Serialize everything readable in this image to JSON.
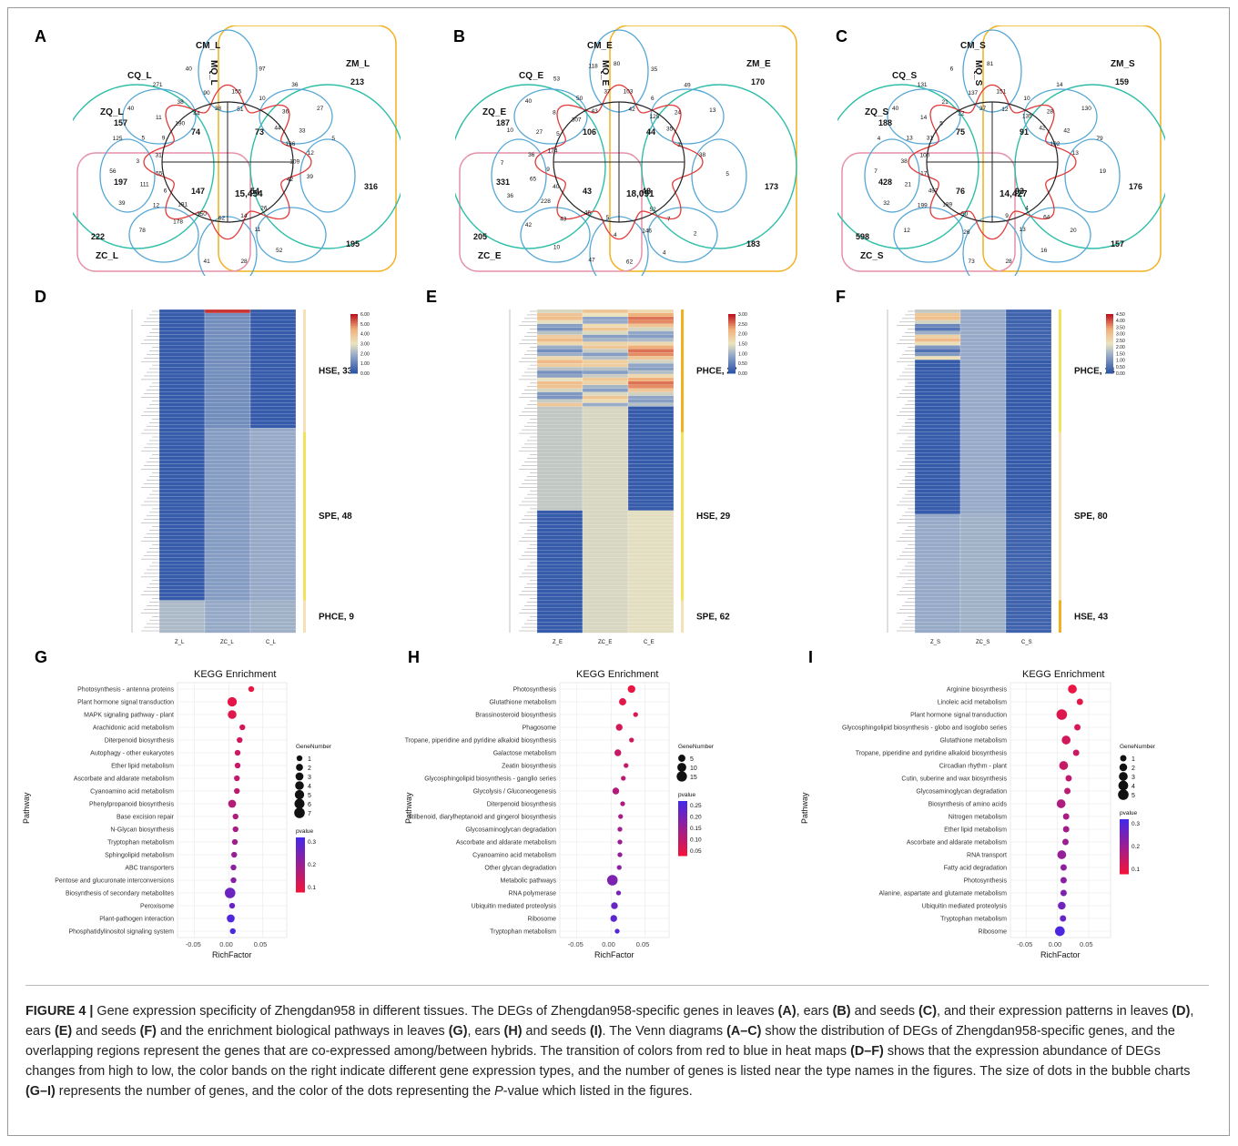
{
  "figure": {
    "panel_letters": [
      "A",
      "B",
      "C",
      "D",
      "E",
      "F",
      "G",
      "H",
      "I"
    ],
    "caption": {
      "label": "FIGURE 4 |",
      "parts": [
        " Gene expression specificity of Zhengdan958 in different tissues. The DEGs of Zhengdan958-specific genes in leaves ",
        "(A)",
        ", ears ",
        "(B)",
        " and seeds ",
        "(C)",
        ", and their expression patterns in leaves ",
        "(D)",
        ", ears ",
        "(E)",
        " and seeds ",
        "(F)",
        " and the enrichment biological pathways in leaves ",
        "(G)",
        ", ears ",
        "(H)",
        " and seeds ",
        "(I)",
        ". The Venn diagrams ",
        "(A–C)",
        " show the distribution of DEGs of Zhengdan958-specific genes, and the overlapping regions represent the genes that are co-expressed among/between hybrids. The transition of colors from red to blue in heat maps ",
        "(D–F)",
        " shows that the expression abundance of DEGs changes from high to low, the color bands on the right indicate different gene expression types, and the number of genes is listed near the type names in the figures. The size of dots in the bubble charts ",
        "(G–I)",
        " represents the number of genes, and the color of the dots representing the ",
        "P",
        "-value which listed in the figures."
      ]
    },
    "venn": [
      {
        "labels": {
          "cm": "CM_L",
          "zm": "ZM_L",
          "cq": "CQ_L",
          "mq": "MQ_L",
          "zq": "ZQ_L",
          "zc": "ZC_L"
        },
        "nums": [
          "213",
          "155",
          "51",
          "97",
          "10",
          "157",
          "36",
          "36",
          "44",
          "27",
          "33",
          "136",
          "5",
          "12",
          "109",
          "197",
          "39",
          "42",
          "74",
          "316",
          "73",
          "147",
          "54",
          "26",
          "52",
          "11",
          "14",
          "28",
          "222",
          "62",
          "41",
          "195",
          "350",
          "15,454",
          "178",
          "191",
          "78",
          "12",
          "6",
          "39",
          "111",
          "55",
          "56",
          "3",
          "31",
          "125",
          "5",
          "9",
          "40",
          "11",
          "190",
          "271",
          "38",
          "44",
          "40",
          "90",
          "38"
        ]
      },
      {
        "labels": {
          "cm": "CM_E",
          "zm": "ZM_E",
          "cq": "CQ_E",
          "mq": "MQ_E",
          "zq": "ZQ_E",
          "zc": "ZC_E"
        },
        "nums": [
          "80",
          "103",
          "42",
          "35",
          "6",
          "125",
          "49",
          "24",
          "35",
          "13",
          "170",
          "3",
          "187",
          "38",
          "331",
          "5",
          "106",
          "44",
          "173",
          "43",
          "48",
          "2",
          "7",
          "52",
          "4",
          "146",
          "18,091",
          "62",
          "4",
          "5",
          "47",
          "205",
          "46",
          "10",
          "43",
          "183",
          "42",
          "228",
          "40",
          "36",
          "65",
          "9",
          "7",
          "36",
          "174",
          "10",
          "27",
          "5",
          "40",
          "8",
          "307",
          "53",
          "50",
          "43",
          "118",
          "37"
        ]
      },
      {
        "labels": {
          "cm": "CM_S",
          "zm": "ZM_S",
          "cq": "CQ_S",
          "mq": "MQ_S",
          "zq": "ZQ_S",
          "zc": "ZC_S"
        },
        "nums": [
          "81",
          "151",
          "12",
          "159",
          "10",
          "135",
          "14",
          "28",
          "42",
          "130",
          "42",
          "102",
          "79",
          "13",
          "188",
          "19",
          "75",
          "91",
          "428",
          "76",
          "93",
          "20",
          "64",
          "4",
          "16",
          "13",
          "9",
          "28",
          "176",
          "14,427",
          "73",
          "26",
          "50",
          "598",
          "157",
          "189",
          "12",
          "199",
          "497",
          "32",
          "21",
          "17",
          "7",
          "38",
          "100",
          "4",
          "13",
          "31",
          "40",
          "14",
          "5",
          "131",
          "21",
          "22",
          "6",
          "137",
          "37"
        ]
      }
    ],
    "heatmaps": [
      {
        "legend_ticks": [
          "6.00",
          "5.00",
          "4.00",
          "3.00",
          "2.00",
          "1.00",
          "0.00"
        ],
        "cols": [
          "Z_L",
          "ZC_L",
          "C_L"
        ],
        "types": [
          {
            "label": "HSE, 33"
          },
          {
            "label": "SPE, 48"
          },
          {
            "label": "PHCE, 9"
          }
        ]
      },
      {
        "legend_ticks": [
          "3.00",
          "2.50",
          "2.00",
          "1.50",
          "1.00",
          "0.50",
          "0.00"
        ],
        "cols": [
          "Z_E",
          "ZC_E",
          "C_E"
        ],
        "types": [
          {
            "label": "PHCE, 27"
          },
          {
            "label": "HSE, 29"
          },
          {
            "label": "SPE, 62"
          }
        ]
      },
      {
        "legend_ticks": [
          "4.50",
          "4.00",
          "3.50",
          "3.00",
          "2.50",
          "2.00",
          "1.50",
          "1.00",
          "0.50",
          "0.00"
        ],
        "cols": [
          "Z_S",
          "ZC_S",
          "C_S"
        ],
        "types": [
          {
            "label": "PHCE, 14"
          },
          {
            "label": "SPE, 80"
          },
          {
            "label": "HSE, 43"
          }
        ]
      }
    ]
  },
  "chart_data": [
    {
      "type": "scatter",
      "title": "KEGG Enrichment",
      "xlabel": "RichFactor",
      "ylabel": "Pathway",
      "xticks": [
        "-0.05",
        "0.00",
        "0.05"
      ],
      "xlim": [
        -0.075,
        0.085
      ],
      "size_legend": {
        "title": "GeneNumber",
        "values": [
          "1",
          "2",
          "3",
          "4",
          "5",
          "6",
          "7"
        ]
      },
      "color_legend": {
        "title": "pvalue",
        "ticks": [
          "0.3",
          "0.2",
          "0.1"
        ],
        "range": [
          0.05,
          0.37
        ]
      },
      "categories": [
        "Photosynthesis - antenna proteins",
        "Plant hormone signal transduction",
        "MAPK signaling pathway - plant",
        "Arachidonic acid metabolism",
        "Diterpenoid biosynthesis",
        "Autophagy - other eukaryotes",
        "Ether lipid metabolism",
        "Ascorbate and aldarate metabolism",
        "Cyanoamino acid metabolism",
        "Phenylpropanoid biosynthesis",
        "Base excision repair",
        "N-Glycan biosynthesis",
        "Tryptophan metabolism",
        "Sphingolipid metabolism",
        "ABC transporters",
        "Pentose and glucuronate interconversions",
        "Biosynthesis of secondary metabolites",
        "Peroxisome",
        "Plant-pathogen interaction",
        "Phosphatidylinositol signaling system"
      ],
      "richfactor": [
        0.033,
        0.005,
        0.005,
        0.02,
        0.016,
        0.013,
        0.013,
        0.012,
        0.012,
        0.005,
        0.01,
        0.01,
        0.009,
        0.008,
        0.007,
        0.007,
        0.002,
        0.005,
        0.003,
        0.006
      ],
      "genenumber": [
        1,
        5,
        4,
        1,
        1,
        1,
        1,
        1,
        1,
        3,
        1,
        1,
        1,
        1,
        1,
        1,
        7,
        1,
        3,
        1
      ],
      "pvalue": [
        0.06,
        0.07,
        0.08,
        0.1,
        0.11,
        0.12,
        0.13,
        0.14,
        0.15,
        0.16,
        0.17,
        0.19,
        0.2,
        0.22,
        0.24,
        0.25,
        0.3,
        0.31,
        0.35,
        0.36
      ]
    },
    {
      "type": "scatter",
      "title": "KEGG Enrichment",
      "xlabel": "RichFactor",
      "ylabel": "Pathway",
      "xticks": [
        "-0.05",
        "0.00",
        "0.05"
      ],
      "xlim": [
        -0.075,
        0.085
      ],
      "size_legend": {
        "title": "GeneNumber",
        "values": [
          "5",
          "10",
          "15"
        ]
      },
      "color_legend": {
        "title": "pvalue",
        "ticks": [
          "0.25",
          "0.20",
          "0.15",
          "0.10",
          "0.05"
        ],
        "range": [
          0.02,
          0.27
        ]
      },
      "categories": [
        "Photosynthesis",
        "Glutathione metabolism",
        "Brassinosteroid biosynthesis",
        "Phagosome",
        "Tropane, piperidine and pyridine alkaloid biosynthesis",
        "Galactose metabolism",
        "Zeatin biosynthesis",
        "Glycosphingolipid biosynthesis - ganglio series",
        "Glycolysis / Gluconeogenesis",
        "Diterpenoid biosynthesis",
        "Stilbenoid, diarylheptanoid and gingerol biosynthesis",
        "Glycosaminoglycan degradation",
        "Ascorbate and aldarate metabolism",
        "Cyanoamino acid metabolism",
        "Other glycan degradation",
        "Metabolic pathways",
        "RNA polymerase",
        "Ubiquitin mediated proteolysis",
        "Ribosome",
        "Tryptophan metabolism"
      ],
      "richfactor": [
        0.03,
        0.017,
        0.036,
        0.012,
        0.03,
        0.01,
        0.022,
        0.018,
        0.007,
        0.017,
        0.014,
        0.013,
        0.013,
        0.013,
        0.012,
        0.002,
        0.011,
        0.005,
        0.004,
        0.009
      ],
      "genenumber": [
        6,
        5,
        1,
        4,
        1,
        4,
        1,
        1,
        4,
        1,
        1,
        1,
        1,
        1,
        1,
        16,
        1,
        4,
        4,
        1
      ],
      "pvalue": [
        0.03,
        0.04,
        0.05,
        0.06,
        0.07,
        0.08,
        0.09,
        0.1,
        0.11,
        0.12,
        0.13,
        0.14,
        0.15,
        0.16,
        0.17,
        0.19,
        0.2,
        0.22,
        0.24,
        0.25
      ]
    },
    {
      "type": "scatter",
      "title": "KEGG Enrichment",
      "xlabel": "RichFactor",
      "ylabel": "Pathway",
      "xticks": [
        "-0.05",
        "0.00",
        "0.05"
      ],
      "xlim": [
        -0.075,
        0.085
      ],
      "size_legend": {
        "title": "GeneNumber",
        "values": [
          "1",
          "2",
          "3",
          "4",
          "5"
        ]
      },
      "color_legend": {
        "title": "pvalue",
        "ticks": [
          "0.3",
          "0.2",
          "0.1"
        ],
        "range": [
          0.05,
          0.33
        ]
      },
      "categories": [
        "Arginine biosynthesis",
        "Linoleic acid metabolism",
        "Plant hormone signal transduction",
        "Glycosphingolipid biosynthesis - globo and isoglobo series",
        "Glutathione metabolism",
        "Tropane, piperidine and pyridine alkaloid biosynthesis",
        "Circadian rhythm - plant",
        "Cutin, suberine and wax biosynthesis",
        "Glycosaminoglycan degradation",
        "Biosynthesis of amino acids",
        "Nitrogen metabolism",
        "Ether lipid metabolism",
        "Ascorbate and aldarate metabolism",
        "RNA transport",
        "Fatty acid degradation",
        "Photosynthesis",
        "Alanine, aspartate and glutamate metabolism",
        "Ubiquitin mediated proteolysis",
        "Tryptophan metabolism",
        "Ribosome"
      ],
      "richfactor": [
        0.024,
        0.036,
        0.007,
        0.032,
        0.014,
        0.03,
        0.01,
        0.018,
        0.016,
        0.006,
        0.014,
        0.014,
        0.013,
        0.007,
        0.01,
        0.01,
        0.01,
        0.007,
        0.009,
        0.004
      ],
      "genenumber": [
        3,
        1,
        5,
        1,
        3,
        1,
        3,
        1,
        1,
        3,
        1,
        1,
        1,
        3,
        1,
        1,
        1,
        2,
        1,
        4
      ],
      "pvalue": [
        0.06,
        0.07,
        0.08,
        0.09,
        0.1,
        0.11,
        0.12,
        0.13,
        0.14,
        0.16,
        0.17,
        0.18,
        0.19,
        0.2,
        0.21,
        0.22,
        0.24,
        0.26,
        0.28,
        0.32
      ]
    }
  ]
}
